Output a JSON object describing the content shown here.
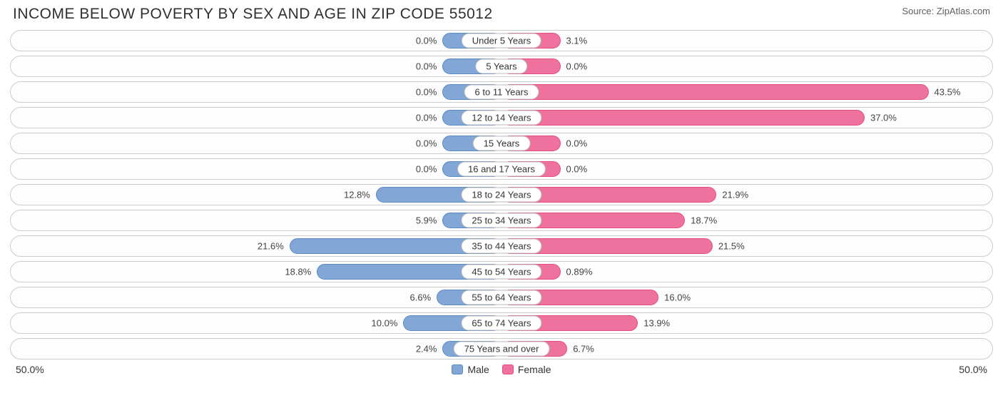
{
  "title": "INCOME BELOW POVERTY BY SEX AND AGE IN ZIP CODE 55012",
  "source": "Source: ZipAtlas.com",
  "axis_max": 50.0,
  "axis_left_label": "50.0%",
  "axis_right_label": "50.0%",
  "colors": {
    "male_fill": "#82a7d6",
    "male_border": "#5e8ac2",
    "female_fill": "#ef719e",
    "female_border": "#e24e83",
    "track_border": "#cccccc",
    "background": "#ffffff",
    "text": "#333333"
  },
  "min_bar_pct": 6.0,
  "legend": {
    "male": "Male",
    "female": "Female"
  },
  "rows": [
    {
      "label": "Under 5 Years",
      "male": 0.0,
      "male_text": "0.0%",
      "female": 3.1,
      "female_text": "3.1%"
    },
    {
      "label": "5 Years",
      "male": 0.0,
      "male_text": "0.0%",
      "female": 0.0,
      "female_text": "0.0%"
    },
    {
      "label": "6 to 11 Years",
      "male": 0.0,
      "male_text": "0.0%",
      "female": 43.5,
      "female_text": "43.5%"
    },
    {
      "label": "12 to 14 Years",
      "male": 0.0,
      "male_text": "0.0%",
      "female": 37.0,
      "female_text": "37.0%"
    },
    {
      "label": "15 Years",
      "male": 0.0,
      "male_text": "0.0%",
      "female": 0.0,
      "female_text": "0.0%"
    },
    {
      "label": "16 and 17 Years",
      "male": 0.0,
      "male_text": "0.0%",
      "female": 0.0,
      "female_text": "0.0%"
    },
    {
      "label": "18 to 24 Years",
      "male": 12.8,
      "male_text": "12.8%",
      "female": 21.9,
      "female_text": "21.9%"
    },
    {
      "label": "25 to 34 Years",
      "male": 5.9,
      "male_text": "5.9%",
      "female": 18.7,
      "female_text": "18.7%"
    },
    {
      "label": "35 to 44 Years",
      "male": 21.6,
      "male_text": "21.6%",
      "female": 21.5,
      "female_text": "21.5%"
    },
    {
      "label": "45 to 54 Years",
      "male": 18.8,
      "male_text": "18.8%",
      "female": 0.89,
      "female_text": "0.89%"
    },
    {
      "label": "55 to 64 Years",
      "male": 6.6,
      "male_text": "6.6%",
      "female": 16.0,
      "female_text": "16.0%"
    },
    {
      "label": "65 to 74 Years",
      "male": 10.0,
      "male_text": "10.0%",
      "female": 13.9,
      "female_text": "13.9%"
    },
    {
      "label": "75 Years and over",
      "male": 2.4,
      "male_text": "2.4%",
      "female": 6.7,
      "female_text": "6.7%"
    }
  ]
}
